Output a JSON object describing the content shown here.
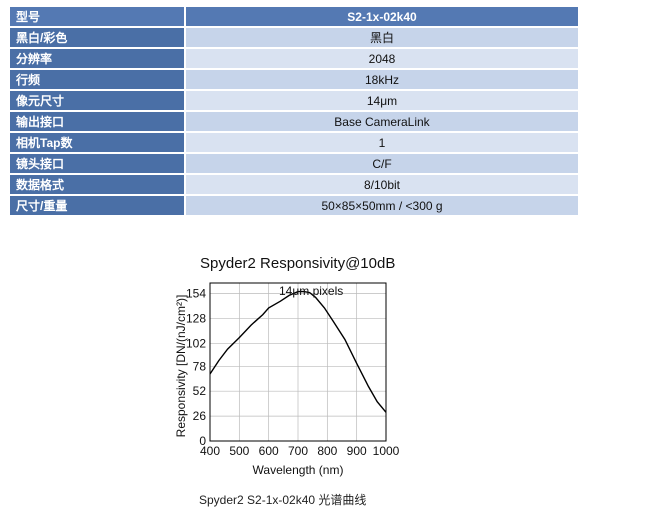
{
  "spec_table": {
    "header": {
      "label": "型号",
      "value": "S2-1x-02k40"
    },
    "rows": [
      {
        "label": "黑白/彩色",
        "value": "黑白"
      },
      {
        "label": "分辨率",
        "value": "2048"
      },
      {
        "label": "行频",
        "value": "18kHz"
      },
      {
        "label": "像元尺寸",
        "value": "14μm"
      },
      {
        "label": "输出接口",
        "value": "Base CameraLink"
      },
      {
        "label": "相机Tap数",
        "value": "1"
      },
      {
        "label": "镜头接口",
        "value": "C/F"
      },
      {
        "label": "数据格式",
        "value": "8/10bit"
      },
      {
        "label": "尺寸/重量",
        "value": "50×85×50mm / <300 g"
      }
    ]
  },
  "chart_data": {
    "type": "line",
    "title": "Spyder2 Responsivity@10dB",
    "annotation": "14μm pixels",
    "xlabel": "Wavelength (nm)",
    "ylabel": "Responsivity [DN/(nJ/cm²)]",
    "xlim": [
      400,
      1000
    ],
    "ylim": [
      0,
      165
    ],
    "x_ticks": [
      400,
      500,
      600,
      700,
      800,
      900,
      1000
    ],
    "y_ticks": [
      0,
      26,
      52,
      78,
      102,
      128,
      154
    ],
    "grid": true,
    "series": [
      {
        "name": "14μm pixels",
        "x": [
          400,
          430,
          460,
          500,
          540,
          580,
          600,
          640,
          670,
          700,
          720,
          740,
          760,
          790,
          820,
          860,
          900,
          940,
          970,
          1000
        ],
        "y": [
          70,
          84,
          96,
          108,
          121,
          132,
          139,
          146,
          152,
          156,
          156,
          155,
          150,
          139,
          125,
          106,
          81,
          57,
          41,
          30
        ]
      }
    ]
  },
  "caption": "Spyder2 S2-1x-02k40 光谱曲线"
}
